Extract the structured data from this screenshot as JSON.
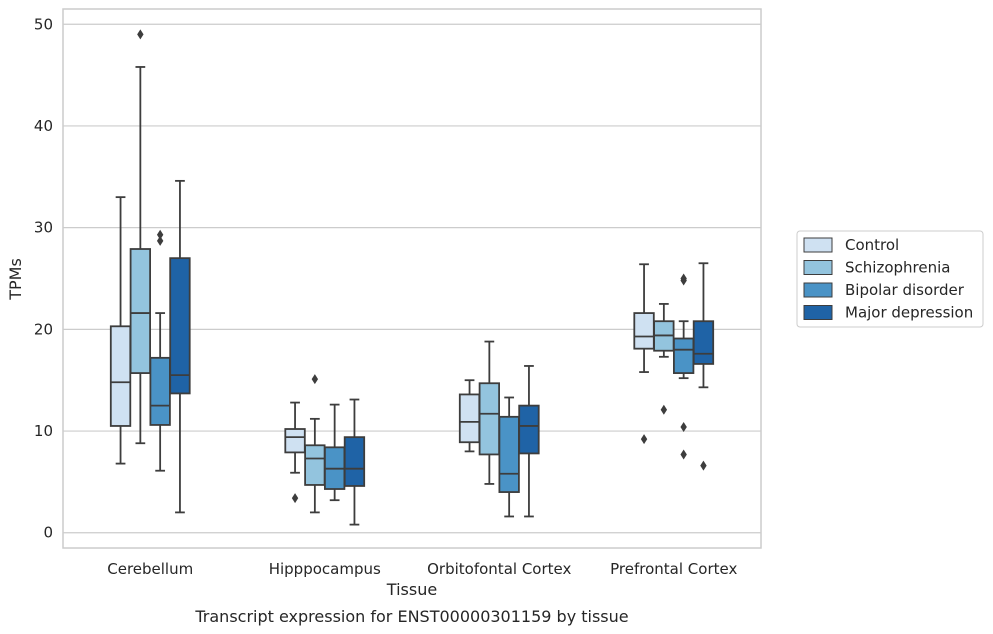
{
  "chart_data": {
    "type": "box",
    "title": "",
    "caption": "Transcript expression for ENST00000301159 by tissue",
    "xlabel": "Tissue",
    "ylabel": "TPMs",
    "ylim": [
      -1.5,
      51.5
    ],
    "yticks": [
      0,
      10,
      20,
      30,
      40,
      50
    ],
    "grid": "horizontal",
    "legend_position": "right",
    "categories": [
      "Cerebellum",
      "Hipppocampus",
      "Orbitofontal Cortex",
      "Prefrontal Cortex"
    ],
    "series": [
      {
        "name": "Control",
        "color": "#cfe1f2",
        "boxes": [
          {
            "whislo": 6.8,
            "q1": 10.5,
            "med": 14.8,
            "q3": 20.3,
            "whishi": 33.0,
            "fliers": []
          },
          {
            "whislo": 5.9,
            "q1": 7.9,
            "med": 9.4,
            "q3": 10.2,
            "whishi": 12.8,
            "fliers": [
              3.4
            ]
          },
          {
            "whislo": 8.0,
            "q1": 8.9,
            "med": 10.9,
            "q3": 13.6,
            "whishi": 15.0,
            "fliers": []
          },
          {
            "whislo": 15.8,
            "q1": 18.1,
            "med": 19.3,
            "q3": 21.6,
            "whishi": 26.4,
            "fliers": [
              9.2
            ]
          }
        ]
      },
      {
        "name": "Schizophrenia",
        "color": "#93c4de",
        "boxes": [
          {
            "whislo": 8.8,
            "q1": 15.7,
            "med": 21.6,
            "q3": 27.9,
            "whishi": 45.8,
            "fliers": [
              49.0
            ]
          },
          {
            "whislo": 2.0,
            "q1": 4.7,
            "med": 7.3,
            "q3": 8.6,
            "whishi": 11.2,
            "fliers": [
              15.1
            ]
          },
          {
            "whislo": 4.8,
            "q1": 7.7,
            "med": 11.7,
            "q3": 14.7,
            "whishi": 18.8,
            "fliers": []
          },
          {
            "whislo": 17.3,
            "q1": 17.9,
            "med": 19.4,
            "q3": 20.8,
            "whishi": 22.5,
            "fliers": [
              12.1
            ]
          }
        ]
      },
      {
        "name": "Bipolar disorder",
        "color": "#4a93c6",
        "boxes": [
          {
            "whislo": 6.1,
            "q1": 10.6,
            "med": 12.5,
            "q3": 17.2,
            "whishi": 21.6,
            "fliers": [
              28.7,
              29.3
            ]
          },
          {
            "whislo": 3.2,
            "q1": 4.3,
            "med": 6.3,
            "q3": 8.4,
            "whishi": 12.6,
            "fliers": []
          },
          {
            "whislo": 1.6,
            "q1": 4.0,
            "med": 5.8,
            "q3": 11.4,
            "whishi": 13.3,
            "fliers": []
          },
          {
            "whislo": 15.2,
            "q1": 15.7,
            "med": 18.0,
            "q3": 19.1,
            "whishi": 20.8,
            "fliers": [
              7.7,
              10.4,
              24.8,
              25.0
            ]
          }
        ]
      },
      {
        "name": "Major depression",
        "color": "#1f63a6",
        "boxes": [
          {
            "whislo": 2.0,
            "q1": 13.7,
            "med": 15.5,
            "q3": 27.0,
            "whishi": 34.6,
            "fliers": []
          },
          {
            "whislo": 0.8,
            "q1": 4.6,
            "med": 6.3,
            "q3": 9.4,
            "whishi": 13.1,
            "fliers": []
          },
          {
            "whislo": 1.6,
            "q1": 7.8,
            "med": 10.5,
            "q3": 12.5,
            "whishi": 16.4,
            "fliers": []
          },
          {
            "whislo": 14.3,
            "q1": 16.6,
            "med": 17.6,
            "q3": 20.8,
            "whishi": 26.5,
            "fliers": [
              6.6
            ]
          }
        ]
      }
    ]
  }
}
